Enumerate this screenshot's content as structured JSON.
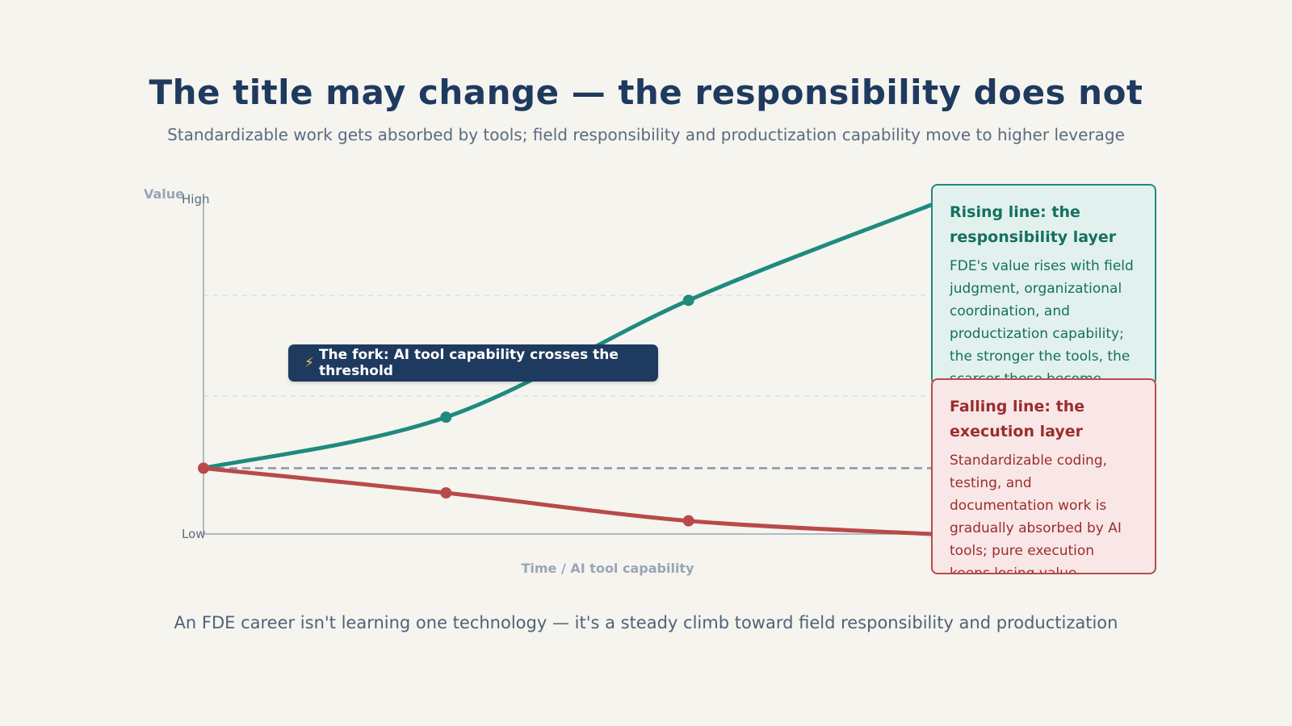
{
  "title": "The title may change — the responsibility does not",
  "subtitle": "Standardizable work gets absorbed by tools; field responsibility and productization capability move to higher leverage",
  "footer": "An FDE career isn't learning one technology — it's a steady climb toward field responsibility and productization",
  "chart_data": {
    "type": "line",
    "xlabel": "Time / AI tool capability",
    "ylabel": "Value",
    "ytick_labels": [
      "Low",
      "High"
    ],
    "grid": true,
    "x": [
      0,
      1,
      2,
      3
    ],
    "baseline": 0.2,
    "series": [
      {
        "values": [
          0.2,
          0.355,
          0.71,
          1.0
        ],
        "color": "#1f8a7e",
        "marker_indices": [
          1,
          2
        ]
      },
      {
        "values": [
          0.2,
          0.125,
          0.04,
          0.0
        ],
        "color": "#b94a4a",
        "marker_indices": [
          0,
          1,
          2
        ]
      }
    ],
    "annotations": {
      "fork": "The fork: AI tool capability crosses the threshold",
      "fork_icon": "lightning-bolt-icon"
    }
  },
  "boxes": {
    "rising": {
      "title": "Rising line: the responsibility layer",
      "body": "FDE's value rises with field judgment, organizational coordination, and productization capability; the stronger the tools, the scarcer these become."
    },
    "falling": {
      "title": "Falling line: the execution layer",
      "body": "Standardizable coding, testing, and documentation work is gradually absorbed by AI tools; pure execution keeps losing value."
    }
  }
}
